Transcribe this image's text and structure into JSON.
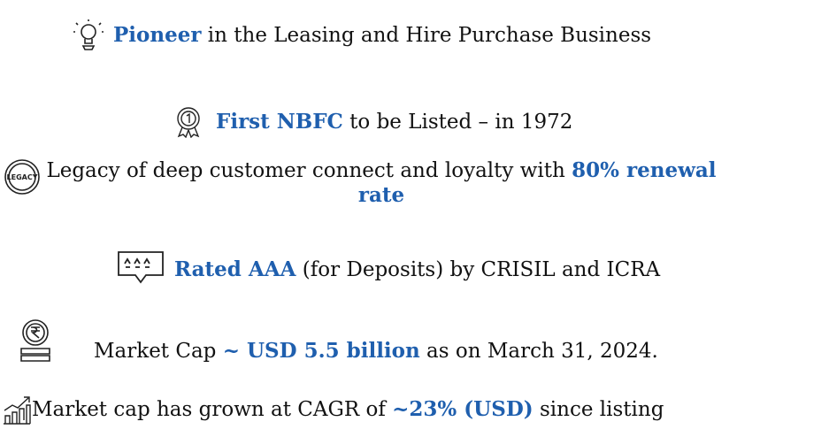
{
  "items": [
    {
      "segments": [
        {
          "text": "Pioneer",
          "emphasis": true
        },
        {
          "text": " in the Leasing and Hire Purchase Business",
          "emphasis": false
        }
      ]
    },
    {
      "segments": [
        {
          "text": "First NBFC",
          "emphasis": true
        },
        {
          "text": " to be Listed – in 1972",
          "emphasis": false
        }
      ]
    },
    {
      "segments": [
        {
          "text": "Legacy of deep customer connect and loyalty with ",
          "emphasis": false
        },
        {
          "text": "80% renewal rate",
          "emphasis": true
        }
      ]
    },
    {
      "segments": [
        {
          "text": "Rated AAA",
          "emphasis": true
        },
        {
          "text": " (for Deposits) by CRISIL and ICRA",
          "emphasis": false
        }
      ]
    },
    {
      "segments": [
        {
          "text": "Market Cap ",
          "emphasis": false
        },
        {
          "text": "~ USD 5.5 billion",
          "emphasis": true
        },
        {
          "text": " as on March 31, 2024.",
          "emphasis": false
        }
      ]
    },
    {
      "segments": [
        {
          "text": "Market cap has grown at CAGR of ",
          "emphasis": false
        },
        {
          "text": "~23% (USD)",
          "emphasis": true
        },
        {
          "text": " since listing",
          "emphasis": false
        }
      ]
    }
  ]
}
